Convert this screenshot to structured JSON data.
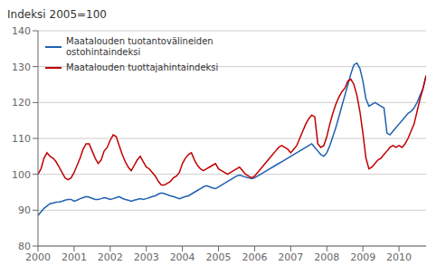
{
  "chart_data": {
    "type": "line",
    "title": "Indeksi 2005=100",
    "x": [
      2000,
      2000.083333,
      2000.166667,
      2000.25,
      2000.333333,
      2000.416667,
      2000.5,
      2000.583333,
      2000.666667,
      2000.75,
      2000.833333,
      2000.916667,
      2001,
      2001.083333,
      2001.166667,
      2001.25,
      2001.333333,
      2001.416667,
      2001.5,
      2001.583333,
      2001.666667,
      2001.75,
      2001.833333,
      2001.916667,
      2002,
      2002.083333,
      2002.166667,
      2002.25,
      2002.333333,
      2002.416667,
      2002.5,
      2002.583333,
      2002.666667,
      2002.75,
      2002.833333,
      2002.916667,
      2003,
      2003.083333,
      2003.166667,
      2003.25,
      2003.333333,
      2003.416667,
      2003.5,
      2003.583333,
      2003.666667,
      2003.75,
      2003.833333,
      2003.916667,
      2004,
      2004.083333,
      2004.166667,
      2004.25,
      2004.333333,
      2004.416667,
      2004.5,
      2004.583333,
      2004.666667,
      2004.75,
      2004.833333,
      2004.916667,
      2005,
      2005.083333,
      2005.166667,
      2005.25,
      2005.333333,
      2005.416667,
      2005.5,
      2005.583333,
      2005.666667,
      2005.75,
      2005.833333,
      2005.916667,
      2006,
      2006.083333,
      2006.166667,
      2006.25,
      2006.333333,
      2006.416667,
      2006.5,
      2006.583333,
      2006.666667,
      2006.75,
      2006.833333,
      2006.916667,
      2007,
      2007.083333,
      2007.166667,
      2007.25,
      2007.333333,
      2007.416667,
      2007.5,
      2007.583333,
      2007.666667,
      2007.75,
      2007.833333,
      2007.916667,
      2008,
      2008.083333,
      2008.166667,
      2008.25,
      2008.333333,
      2008.416667,
      2008.5,
      2008.583333,
      2008.666667,
      2008.75,
      2008.833333,
      2008.916667,
      2009,
      2009.083333,
      2009.166667,
      2009.25,
      2009.333333,
      2009.416667,
      2009.5,
      2009.583333,
      2009.666667,
      2009.75,
      2009.833333,
      2009.916667,
      2010,
      2010.083333,
      2010.166667,
      2010.25,
      2010.333333,
      2010.416667,
      2010.5,
      2010.583333,
      2010.666667,
      2010.75
    ],
    "series": [
      {
        "name": "Maatalouden tuotantovälineiden\nostohintaindeksi",
        "color": "#2060b0",
        "values": [
          88.5,
          89.5,
          90.5,
          91.2,
          91.8,
          92.0,
          92.2,
          92.3,
          92.5,
          92.8,
          93.0,
          93.0,
          92.5,
          92.8,
          93.2,
          93.5,
          93.8,
          93.6,
          93.3,
          93.0,
          93.0,
          93.2,
          93.5,
          93.3,
          93.0,
          93.2,
          93.5,
          93.8,
          93.3,
          93.0,
          92.8,
          92.5,
          92.8,
          93.0,
          93.2,
          93.0,
          93.2,
          93.5,
          93.8,
          94.0,
          94.5,
          94.8,
          94.6,
          94.3,
          94.0,
          93.8,
          93.5,
          93.2,
          93.5,
          93.8,
          94.0,
          94.5,
          95.0,
          95.5,
          96.0,
          96.5,
          96.8,
          96.5,
          96.2,
          96.0,
          96.5,
          97.0,
          97.5,
          98.0,
          98.5,
          99.0,
          99.5,
          99.8,
          99.5,
          99.2,
          99.0,
          98.8,
          99.0,
          99.5,
          100.0,
          100.5,
          101.0,
          101.5,
          102.0,
          102.5,
          103.0,
          103.5,
          104.0,
          104.5,
          105.0,
          105.5,
          106.0,
          106.5,
          107.0,
          107.5,
          108.0,
          108.5,
          107.5,
          106.5,
          105.5,
          105.0,
          106.0,
          108.0,
          110.5,
          113.0,
          116.0,
          119.0,
          122.0,
          125.0,
          128.0,
          130.5,
          131.0,
          129.5,
          126.0,
          121.0,
          119.0,
          119.5,
          120.0,
          119.5,
          119.0,
          118.5,
          111.5,
          111.0,
          112.0,
          113.0,
          114.0,
          115.0,
          116.0,
          117.0,
          117.5,
          118.5,
          120.0,
          122.0,
          124.0,
          127.5
        ]
      },
      {
        "name": "Maatalouden tuottajahintaindeksi",
        "color": "#c00000",
        "values": [
          100.0,
          101.5,
          104.5,
          106.0,
          105.0,
          104.5,
          103.5,
          102.0,
          100.5,
          99.0,
          98.5,
          99.0,
          100.5,
          102.5,
          104.5,
          107.0,
          108.5,
          108.5,
          106.5,
          104.5,
          103.0,
          104.0,
          106.5,
          107.5,
          109.5,
          111.0,
          110.5,
          108.0,
          105.5,
          103.5,
          102.0,
          101.0,
          102.5,
          104.0,
          105.0,
          103.5,
          102.0,
          101.5,
          100.5,
          99.5,
          98.0,
          97.0,
          97.0,
          97.5,
          98.0,
          99.0,
          99.5,
          100.5,
          103.0,
          104.5,
          105.5,
          106.0,
          104.0,
          102.5,
          101.5,
          101.0,
          101.5,
          102.0,
          102.5,
          103.0,
          101.5,
          101.0,
          100.5,
          100.0,
          100.5,
          101.0,
          101.5,
          102.0,
          101.0,
          100.0,
          99.5,
          99.0,
          99.5,
          100.5,
          101.5,
          102.5,
          103.5,
          104.5,
          105.5,
          106.5,
          107.5,
          108.0,
          107.5,
          107.0,
          106.0,
          107.0,
          108.0,
          110.0,
          112.0,
          114.0,
          115.5,
          116.5,
          116.0,
          108.5,
          107.5,
          108.0,
          110.5,
          114.0,
          117.0,
          119.5,
          121.5,
          123.0,
          124.0,
          126.0,
          126.5,
          125.0,
          122.0,
          117.5,
          111.5,
          104.5,
          101.5,
          102.0,
          103.0,
          104.0,
          104.5,
          105.5,
          106.5,
          107.5,
          108.0,
          107.5,
          108.0,
          107.5,
          108.5,
          110.0,
          112.0,
          114.0,
          117.5,
          121.0,
          124.0,
          127.5
        ]
      }
    ],
    "xlim": [
      2000,
      2010.75
    ],
    "xticks": [
      2000,
      2001,
      2002,
      2003,
      2004,
      2005,
      2006,
      2007,
      2008,
      2009,
      2010
    ],
    "ylim": [
      80,
      140
    ],
    "yticks": [
      80,
      90,
      100,
      110,
      120,
      130,
      140
    ],
    "grid": true,
    "legend": "upper left"
  }
}
